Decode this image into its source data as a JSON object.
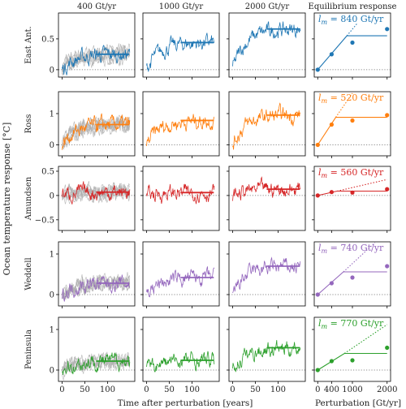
{
  "figure": {
    "ylabel": "Ocean temperature response [°C]",
    "xlabel_time": "Time after perturbation [years]",
    "xlabel_pert": "Perturbation [Gt/yr]"
  },
  "chart_data": {
    "type": "line",
    "columns": [
      "400 Gt/yr",
      "1000 Gt/yr",
      "2000 Gt/yr",
      "Equilibrium response"
    ],
    "time_axis": {
      "xlim": [
        -8,
        160
      ],
      "ticks": [
        0,
        50,
        100
      ]
    },
    "eq_axis": {
      "xlim": [
        -100,
        2100
      ],
      "ticks": [
        0,
        400,
        1000,
        2000
      ]
    },
    "regions": [
      {
        "name": "East Ant.",
        "color": "#1f77b4",
        "ylim": [
          -0.12,
          0.92
        ],
        "yticks": [
          0,
          0.5
        ],
        "plateau": [
          0.25,
          0.44,
          0.66
        ],
        "lm_label": "l_m = 840 Gt/yr",
        "lm_value": "840",
        "eq_points": [
          [
            0,
            0.0
          ],
          [
            400,
            0.25
          ],
          [
            1000,
            0.44
          ],
          [
            2000,
            0.66
          ]
        ],
        "fit": [
          [
            0,
            0.0
          ],
          [
            840,
            0.55
          ],
          [
            2000,
            0.55
          ]
        ],
        "dotted": [
          [
            840,
            0.55
          ],
          [
            1150,
            0.76
          ]
        ]
      },
      {
        "name": "Ross",
        "color": "#ff7f0e",
        "ylim": [
          -0.35,
          1.7
        ],
        "yticks": [
          0,
          1
        ],
        "plateau": [
          0.65,
          0.78,
          0.95
        ],
        "lm_label": "l_m = 520 Gt/yr",
        "lm_value": "520",
        "eq_points": [
          [
            0,
            0.0
          ],
          [
            400,
            0.65
          ],
          [
            1000,
            0.78
          ],
          [
            2000,
            0.95
          ]
        ],
        "fit": [
          [
            0,
            0.0
          ],
          [
            520,
            0.88
          ],
          [
            2000,
            0.88
          ]
        ],
        "dotted": [
          [
            520,
            0.88
          ],
          [
            1000,
            1.65
          ]
        ]
      },
      {
        "name": "Amundsen",
        "color": "#d62728",
        "ylim": [
          -0.72,
          0.6
        ],
        "yticks": [
          -0.5,
          0,
          0.5
        ],
        "plateau": [
          0.07,
          0.06,
          0.13
        ],
        "lm_label": "l_m = 560 Gt/yr",
        "lm_value": "560",
        "eq_points": [
          [
            0,
            0.0
          ],
          [
            400,
            0.07
          ],
          [
            1000,
            0.06
          ],
          [
            2000,
            0.13
          ]
        ],
        "fit": [
          [
            0,
            0.0
          ],
          [
            560,
            0.09
          ],
          [
            2000,
            0.09
          ]
        ],
        "dotted": [
          [
            560,
            0.09
          ],
          [
            2000,
            0.33
          ]
        ]
      },
      {
        "name": "Weddell",
        "color": "#9467bd",
        "ylim": [
          -0.28,
          1.3
        ],
        "yticks": [
          0,
          1
        ],
        "plateau": [
          0.28,
          0.42,
          0.7
        ],
        "lm_label": "l_m = 740 Gt/yr",
        "lm_value": "740",
        "eq_points": [
          [
            0,
            0.0
          ],
          [
            400,
            0.28
          ],
          [
            1000,
            0.42
          ],
          [
            2000,
            0.7
          ]
        ],
        "fit": [
          [
            0,
            0.0
          ],
          [
            740,
            0.56
          ],
          [
            2000,
            0.56
          ]
        ],
        "dotted": [
          [
            740,
            0.56
          ],
          [
            1650,
            1.28
          ]
        ]
      },
      {
        "name": "Peninsula",
        "color": "#2ca02c",
        "ylim": [
          -0.28,
          1.3
        ],
        "yticks": [
          0,
          1
        ],
        "plateau": [
          0.22,
          0.24,
          0.55
        ],
        "lm_label": "l_m = 770 Gt/yr",
        "lm_value": "770",
        "eq_points": [
          [
            0,
            0.0
          ],
          [
            400,
            0.22
          ],
          [
            1000,
            0.24
          ],
          [
            2000,
            0.55
          ]
        ],
        "fit": [
          [
            0,
            0.0
          ],
          [
            770,
            0.41
          ],
          [
            2000,
            0.41
          ]
        ],
        "dotted": [
          [
            770,
            0.41
          ],
          [
            2000,
            1.12
          ]
        ]
      }
    ]
  }
}
